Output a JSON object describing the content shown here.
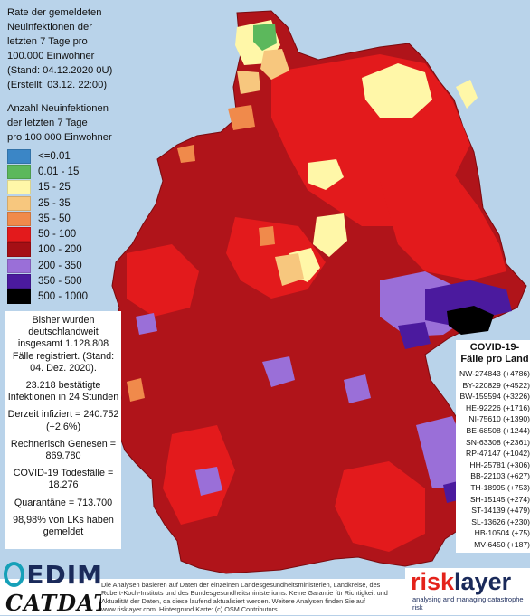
{
  "title": {
    "lines": [
      "Rate der gemeldeten",
      "Neuinfektionen der",
      "letzten 7 Tage pro",
      "100.000 Einwohner",
      "(Stand: 04.12.2020 0U)",
      "(Erstellt: 03.12. 22:00)"
    ]
  },
  "legend": {
    "title_lines": [
      "Anzahl Neuinfektionen",
      "der letzten 7 Tage",
      "pro 100.000 Einwohner"
    ],
    "items": [
      {
        "label": "<=0.01",
        "color": "#3b86c6"
      },
      {
        "label": "0.01 - 15",
        "color": "#5cb85c"
      },
      {
        "label": "15 - 25",
        "color": "#fff7a8"
      },
      {
        "label": "25 - 35",
        "color": "#f7c77e"
      },
      {
        "label": "35 - 50",
        "color": "#f08a4b"
      },
      {
        "label": "50 - 100",
        "color": "#e31a1c"
      },
      {
        "label": "100 - 200",
        "color": "#a50f15"
      },
      {
        "label": "200 - 350",
        "color": "#9a6fd8"
      },
      {
        "label": "350 - 500",
        "color": "#4b1a9e"
      },
      {
        "label": "500 - 1000",
        "color": "#000000"
      }
    ]
  },
  "summary": {
    "paragraphs": [
      "Bisher wurden deutschlandweit insgesamt 1.128.808 Fälle registriert. (Stand: 04. Dez. 2020).",
      "23.218 bestätigte Infektionen in 24 Stunden",
      "Derzeit infiziert = 240.752 (+2,6%)",
      "Rechnerisch Genesen = 869.780",
      "COVID-19 Todesfälle = 18.276",
      "Quarantäne = 713.700",
      "98,98% von LKs haben gemeldet"
    ]
  },
  "states": {
    "title": "COVID-19-Fälle pro Land",
    "rows": [
      "NW-274843 (+4786)",
      "BY-220829 (+4522)",
      "BW-159594 (+3226)",
      "HE-92226 (+1716)",
      "NI-75610 (+1390)",
      "BE-68508 (+1244)",
      "SN-63308 (+2361)",
      "RP-47147 (+1042)",
      "HH-25781 (+306)",
      "BB-22103 (+627)",
      "TH-18995 (+753)",
      "SH-15145 (+274)",
      "ST-14139 (+479)",
      "SL-13626 (+230)",
      "HB-10504 (+75)",
      "MV-6450 (+187)"
    ]
  },
  "credit": "Die Analysen basieren auf Daten der einzelnen Landesgesundheitsministerien, Landkreise, des Robert-Koch-Instituts und des Bundesgesundheitsministeriums. Keine Garantie für Richtigkeit und Aktualität der Daten, da diese laufend aktualisiert werden. Weitere Analysen finden Sie auf www.risklayer.com. Hintergrund Karte: (c) OSM Contributors.",
  "logos": {
    "edim": "EDIM",
    "catdat": "CATDAT",
    "risklayer_a": "risk",
    "risklayer_b": "layer",
    "risklayer_tag": "analysing and managing catastrophe risk"
  }
}
